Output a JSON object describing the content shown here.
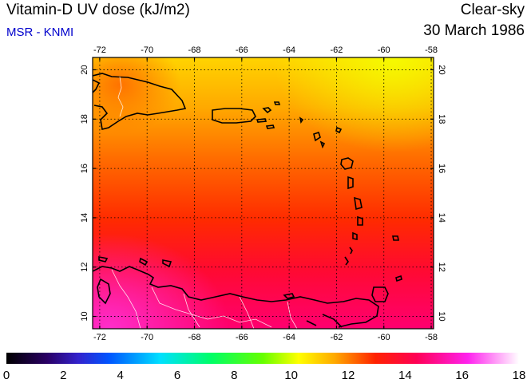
{
  "header": {
    "title": "Vitamin-D UV dose (kJ/m2)",
    "source": "MSR - KNMI",
    "condition": "Clear-sky",
    "date": "30 March 1986"
  },
  "map": {
    "lon_ticks": [
      "-72",
      "-70",
      "-68",
      "-66",
      "-64",
      "-62",
      "-60",
      "-58"
    ],
    "lat_ticks": [
      "10",
      "12",
      "14",
      "16",
      "18",
      "20"
    ],
    "field_description_colors": {
      "north": "#ffcc00",
      "mid": "#ff4400",
      "south": "#ff0066",
      "southwest": "#ff33bb"
    }
  },
  "colorbar": {
    "ticks": [
      "0",
      "2",
      "4",
      "6",
      "8",
      "10",
      "12",
      "14",
      "16",
      "18"
    ],
    "colors": [
      "#000000",
      "#3300aa",
      "#0033ff",
      "#00ccff",
      "#00ff66",
      "#66ff00",
      "#ffff00",
      "#ff8800",
      "#ff0000",
      "#ff0088",
      "#ff33ff",
      "#ffffff"
    ]
  }
}
